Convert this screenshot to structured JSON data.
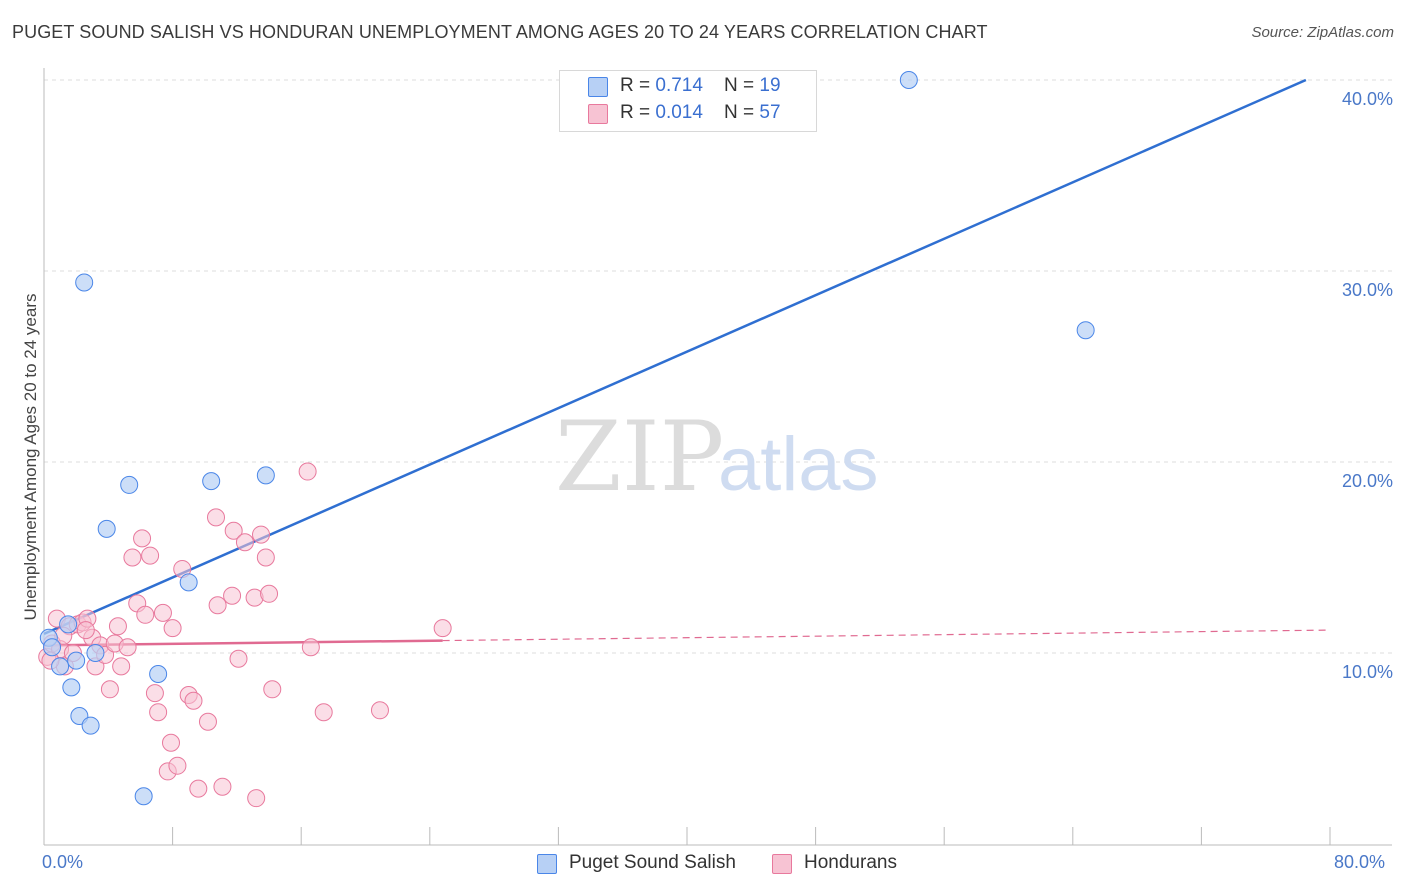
{
  "title": "PUGET SOUND SALISH VS HONDURAN UNEMPLOYMENT AMONG AGES 20 TO 24 YEARS CORRELATION CHART",
  "source": "Source: ZipAtlas.com",
  "watermark": {
    "zip": "ZIP",
    "atlas": "atlas"
  },
  "colors": {
    "blue": "#4a86e8",
    "blue_fill": "#b7d0f5",
    "blue_line": "#2f6fd1",
    "pink": "#e8799d",
    "pink_fill": "#f7c3d3",
    "pink_line": "#e06a91"
  },
  "legend": {
    "series1": {
      "r_label": "R = ",
      "r_value": "0.714",
      "n_label": "N = ",
      "n_value": "19"
    },
    "series2": {
      "r_label": "R = ",
      "r_value": "0.014",
      "n_label": "N = ",
      "n_value": "57"
    }
  },
  "bottom_legend": {
    "series1": "Puget Sound Salish",
    "series2": "Hondurans"
  },
  "chart_data": {
    "type": "scatter",
    "title": "PUGET SOUND SALISH VS HONDURAN UNEMPLOYMENT AMONG AGES 20 TO 24 YEARS CORRELATION CHART",
    "xlabel": "",
    "ylabel": "Unemployment Among Ages 20 to 24 years",
    "xlim": [
      0,
      80
    ],
    "ylim": [
      0,
      41
    ],
    "x_tick_labels": [
      "0.0%",
      "80.0%"
    ],
    "y_ticks": [
      10,
      20,
      30,
      40
    ],
    "y_tick_labels": [
      "10.0%",
      "20.0%",
      "30.0%",
      "40.0%"
    ],
    "series": [
      {
        "name": "Puget Sound Salish",
        "points": [
          [
            0.3,
            10.8
          ],
          [
            1.0,
            9.3
          ],
          [
            1.5,
            11.5
          ],
          [
            1.7,
            8.2
          ],
          [
            2.0,
            9.6
          ],
          [
            2.2,
            6.7
          ],
          [
            2.5,
            29.4
          ],
          [
            2.9,
            6.2
          ],
          [
            3.2,
            10.0
          ],
          [
            3.9,
            16.5
          ],
          [
            5.3,
            18.8
          ],
          [
            6.2,
            2.5
          ],
          [
            7.1,
            8.9
          ],
          [
            9.0,
            13.7
          ],
          [
            10.4,
            19.0
          ],
          [
            13.8,
            19.3
          ],
          [
            53.8,
            40.0
          ],
          [
            64.8,
            26.9
          ],
          [
            0.5,
            10.3
          ]
        ],
        "trend": {
          "x0": 0,
          "y0": 11.0,
          "x1": 78.5,
          "y1": 40.0,
          "style": "solid"
        }
      },
      {
        "name": "Hondurans",
        "points": [
          [
            0.2,
            9.8
          ],
          [
            0.5,
            10.5
          ],
          [
            0.8,
            11.8
          ],
          [
            1.0,
            10.2
          ],
          [
            1.3,
            9.3
          ],
          [
            1.6,
            11.4
          ],
          [
            1.8,
            10.0
          ],
          [
            2.1,
            11.5
          ],
          [
            2.4,
            11.6
          ],
          [
            2.7,
            11.8
          ],
          [
            3.0,
            10.8
          ],
          [
            3.2,
            9.3
          ],
          [
            3.5,
            10.4
          ],
          [
            3.8,
            9.9
          ],
          [
            4.1,
            8.1
          ],
          [
            4.4,
            10.5
          ],
          [
            4.6,
            11.4
          ],
          [
            4.8,
            9.3
          ],
          [
            5.2,
            10.3
          ],
          [
            5.5,
            15.0
          ],
          [
            5.8,
            12.6
          ],
          [
            6.1,
            16.0
          ],
          [
            6.3,
            12.0
          ],
          [
            6.6,
            15.1
          ],
          [
            6.9,
            7.9
          ],
          [
            7.1,
            6.9
          ],
          [
            7.4,
            12.1
          ],
          [
            7.7,
            3.8
          ],
          [
            7.9,
            5.3
          ],
          [
            8.0,
            11.3
          ],
          [
            8.3,
            4.1
          ],
          [
            8.6,
            14.4
          ],
          [
            9.0,
            7.8
          ],
          [
            9.3,
            7.5
          ],
          [
            9.6,
            2.9
          ],
          [
            10.2,
            6.4
          ],
          [
            10.7,
            17.1
          ],
          [
            10.8,
            12.5
          ],
          [
            11.1,
            3.0
          ],
          [
            11.7,
            13.0
          ],
          [
            11.8,
            16.4
          ],
          [
            12.1,
            9.7
          ],
          [
            12.5,
            15.8
          ],
          [
            13.1,
            12.9
          ],
          [
            13.2,
            2.4
          ],
          [
            13.5,
            16.2
          ],
          [
            13.8,
            15.0
          ],
          [
            14.0,
            13.1
          ],
          [
            14.2,
            8.1
          ],
          [
            16.4,
            19.5
          ],
          [
            16.6,
            10.3
          ],
          [
            17.4,
            6.9
          ],
          [
            20.9,
            7.0
          ],
          [
            24.8,
            11.3
          ],
          [
            0.4,
            9.6
          ],
          [
            1.2,
            10.9
          ],
          [
            2.6,
            11.2
          ]
        ],
        "trend": {
          "x0": 0,
          "y0": 10.4,
          "x1": 24.8,
          "y1": 10.65,
          "ext_x1": 80,
          "ext_y1": 11.2,
          "style": "solid-then-dashed"
        }
      }
    ],
    "grid": true,
    "legend_position": "top-center"
  }
}
